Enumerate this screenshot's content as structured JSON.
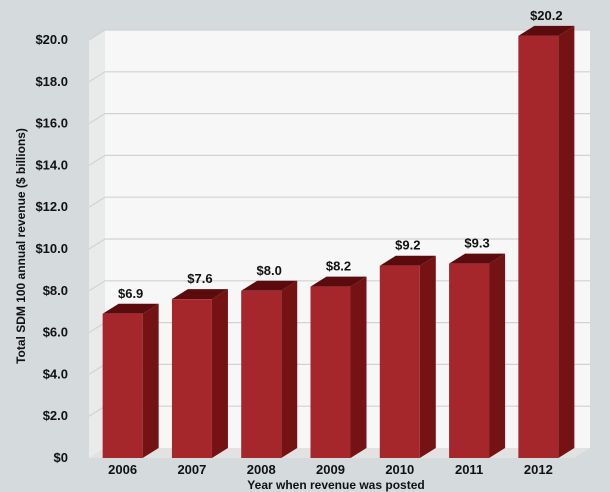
{
  "chart_data": {
    "type": "bar",
    "title": "",
    "xlabel": "Year when revenue was posted",
    "ylabel": "Total SDM 100 annual revenue ($ billions)",
    "categories": [
      "2006",
      "2007",
      "2008",
      "2009",
      "2010",
      "2011",
      "2012"
    ],
    "values": [
      6.9,
      7.6,
      8.0,
      8.2,
      9.2,
      9.3,
      20.2
    ],
    "value_labels": [
      "$6.9",
      "$7.6",
      "$8.0",
      "$8.2",
      "$9.2",
      "$9.3",
      "$20.2"
    ],
    "ylim": [
      0,
      20
    ],
    "yticks": [
      0,
      2,
      4,
      6,
      8,
      10,
      12,
      14,
      16,
      18,
      20
    ],
    "ytick_labels": [
      "$0",
      "$2.0",
      "$4.0",
      "$6.0",
      "$8.0",
      "$10.0",
      "$12.0",
      "$14.0",
      "$16.0",
      "$18.0",
      "$20.0"
    ],
    "grid": true,
    "legend": "none",
    "colors": {
      "background": "#d5dadd",
      "plot_area": "#f7f7f7",
      "gridline": "#d2d2d2",
      "bar_front": "#a5262b",
      "bar_side": "#741214",
      "bar_top": "#5b0b0d",
      "text": "#111111"
    }
  }
}
